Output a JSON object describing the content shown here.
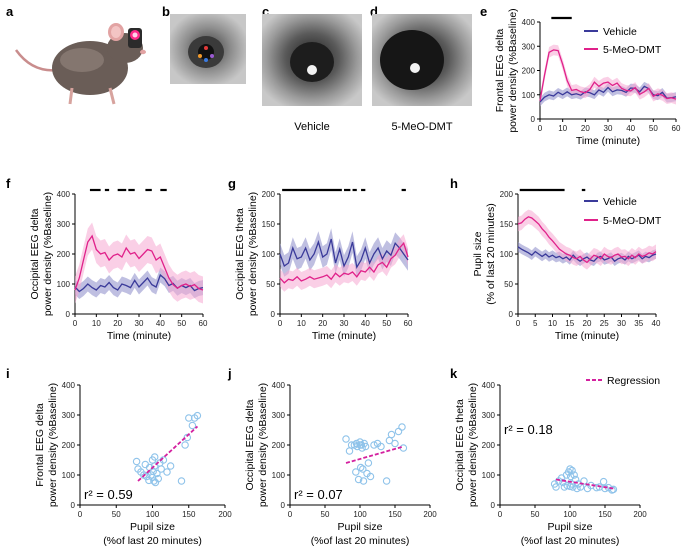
{
  "figure": {
    "panel_labels": [
      "a",
      "b",
      "c",
      "d",
      "e",
      "f",
      "g",
      "h",
      "i",
      "j",
      "k"
    ],
    "captions": {
      "c": "Vehicle",
      "d": "5-MeO-DMT"
    },
    "colors": {
      "vehicle": "#3a3a9a",
      "vehicle_band": "#8a8ac8",
      "drug": "#e0218a",
      "drug_band": "#f5a8d2",
      "scatter": "#8fc3ea",
      "regression": "#d4209f"
    }
  },
  "legend": {
    "vehicle": "Vehicle",
    "drug": "5-MeO-DMT",
    "regression": "Regression"
  },
  "chart_data": [
    {
      "panel": "e",
      "type": "line",
      "ylabel_main": "Frontal EEG delta",
      "ylabel_sub": "power density (%Baseline)",
      "xlabel_main": "Time",
      "xlabel_sub": "(minute)",
      "xlim": [
        0,
        60
      ],
      "ylim": [
        0,
        400
      ],
      "xticks": [
        0,
        10,
        20,
        30,
        40,
        50,
        60
      ],
      "yticks": [
        0,
        100,
        200,
        300,
        400
      ],
      "x": [
        0,
        2,
        4,
        6,
        8,
        10,
        12,
        14,
        16,
        18,
        20,
        22,
        24,
        26,
        28,
        30,
        32,
        34,
        36,
        38,
        40,
        42,
        44,
        46,
        48,
        50,
        52,
        54,
        56,
        58,
        60
      ],
      "series": [
        {
          "name": "Vehicle",
          "values": [
            70,
            90,
            100,
            95,
            110,
            100,
            112,
            100,
            104,
            98,
            112,
            108,
            100,
            120,
            110,
            130,
            112,
            120,
            118,
            110,
            128,
            126,
            112,
            135,
            125,
            100,
            96,
            110,
            86,
            88,
            92
          ],
          "band": 18
        },
        {
          "name": "5-MeO-DMT",
          "values": [
            75,
            180,
            275,
            285,
            282,
            225,
            158,
            118,
            122,
            112,
            108,
            122,
            152,
            135,
            148,
            152,
            138,
            148,
            126,
            118,
            116,
            130,
            102,
            112,
            126,
            94,
            104,
            98,
            84,
            88,
            82
          ],
          "band": 22
        }
      ],
      "sig_bars": [
        [
          5,
          14
        ]
      ]
    },
    {
      "panel": "f",
      "type": "line",
      "ylabel_main": "Occipital EEG delta",
      "ylabel_sub": "power density (%Baseline)",
      "xlabel_main": "Time",
      "xlabel_sub": "(minute)",
      "xlim": [
        0,
        60
      ],
      "ylim": [
        0,
        400
      ],
      "xticks": [
        0,
        10,
        20,
        30,
        40,
        50,
        60
      ],
      "yticks": [
        0,
        100,
        200,
        300,
        400
      ],
      "x": [
        0,
        2,
        4,
        6,
        8,
        10,
        12,
        14,
        16,
        18,
        20,
        22,
        24,
        26,
        28,
        30,
        32,
        34,
        36,
        38,
        40,
        42,
        44,
        46,
        48,
        50,
        52,
        54,
        56,
        58,
        60
      ],
      "series": [
        {
          "name": "Vehicle",
          "values": [
            90,
            75,
            85,
            100,
            88,
            80,
            95,
            90,
            105,
            88,
            80,
            100,
            95,
            88,
            112,
            90,
            105,
            120,
            98,
            90,
            130,
            118,
            95,
            102,
            86,
            95,
            88,
            95,
            78,
            85,
            88
          ],
          "band": 25
        },
        {
          "name": "5-MeO-DMT",
          "values": [
            80,
            120,
            180,
            240,
            260,
            215,
            200,
            205,
            180,
            195,
            200,
            190,
            220,
            200,
            205,
            185,
            200,
            215,
            210,
            180,
            190,
            155,
            120,
            98,
            86,
            95,
            100,
            92,
            98,
            85,
            80
          ],
          "band": 45
        }
      ],
      "sig_bars": [
        [
          7,
          12
        ],
        [
          14,
          16
        ],
        [
          20,
          24
        ],
        [
          25,
          28
        ],
        [
          33,
          36
        ],
        [
          40,
          43
        ]
      ]
    },
    {
      "panel": "g",
      "type": "line",
      "ylabel_main": "Occipital EEG theta",
      "ylabel_sub": "power density (%Baseline)",
      "xlabel_main": "Time",
      "xlabel_sub": "(minute)",
      "xlim": [
        0,
        60
      ],
      "ylim": [
        0,
        200
      ],
      "xticks": [
        0,
        10,
        20,
        30,
        40,
        50,
        60
      ],
      "yticks": [
        0,
        50,
        100,
        150,
        200
      ],
      "x": [
        0,
        2,
        4,
        6,
        8,
        10,
        12,
        14,
        16,
        18,
        20,
        22,
        24,
        26,
        28,
        30,
        32,
        34,
        36,
        38,
        40,
        42,
        44,
        46,
        48,
        50,
        52,
        54,
        56,
        58,
        60
      ],
      "series": [
        {
          "name": "Vehicle",
          "values": [
            100,
            80,
            85,
            110,
            92,
            95,
            110,
            90,
            100,
            120,
            95,
            100,
            125,
            85,
            108,
            80,
            95,
            120,
            78,
            90,
            110,
            85,
            100,
            110,
            92,
            105,
            98,
            118,
            110,
            100,
            90
          ],
          "band": 18
        },
        {
          "name": "5-MeO-DMT",
          "values": [
            60,
            52,
            58,
            56,
            62,
            55,
            58,
            62,
            58,
            60,
            62,
            65,
            58,
            68,
            62,
            68,
            66,
            70,
            62,
            72,
            70,
            78,
            70,
            82,
            86,
            78,
            92,
            98,
            110,
            118,
            95
          ],
          "band": 15
        }
      ],
      "sig_bars": [
        [
          1,
          29
        ],
        [
          30,
          33
        ],
        [
          34,
          36
        ],
        [
          38,
          40
        ],
        [
          57,
          59
        ]
      ]
    },
    {
      "panel": "h",
      "type": "line",
      "ylabel_main": "Pupil size",
      "ylabel_sub": "(% of last 20 minutes)",
      "xlabel_main": "Time",
      "xlabel_sub": "(minute)",
      "xlim": [
        0,
        40
      ],
      "ylim": [
        0,
        200
      ],
      "xticks": [
        0,
        5,
        10,
        15,
        20,
        25,
        30,
        35,
        40
      ],
      "yticks": [
        0,
        50,
        100,
        150,
        200
      ],
      "x": [
        0,
        1,
        2,
        3,
        4,
        5,
        6,
        7,
        8,
        9,
        10,
        11,
        12,
        13,
        14,
        15,
        16,
        17,
        18,
        19,
        20,
        21,
        22,
        23,
        24,
        25,
        26,
        27,
        28,
        29,
        30,
        31,
        32,
        33,
        34,
        35,
        36,
        37,
        38,
        39,
        40
      ],
      "series": [
        {
          "name": "Vehicle",
          "values": [
            112,
            108,
            105,
            102,
            98,
            104,
            100,
            96,
            100,
            95,
            98,
            94,
            96,
            92,
            95,
            90,
            98,
            92,
            88,
            92,
            95,
            90,
            88,
            94,
            96,
            90,
            92,
            95,
            88,
            92,
            94,
            90,
            96,
            92,
            95,
            98,
            92,
            96,
            94,
            98,
            100
          ],
          "band": 8
        },
        {
          "name": "5-MeO-DMT",
          "values": [
            150,
            152,
            158,
            162,
            160,
            155,
            150,
            142,
            136,
            128,
            122,
            115,
            108,
            104,
            100,
            98,
            94,
            92,
            96,
            90,
            86,
            92,
            98,
            96,
            92,
            100,
            96,
            94,
            98,
            100,
            95,
            96,
            92,
            98,
            94,
            100,
            96,
            98,
            102,
            100,
            104
          ],
          "band": 12
        }
      ],
      "sig_bars": [
        [
          0.5,
          13.5
        ],
        [
          18.5,
          19.5
        ]
      ]
    },
    {
      "panel": "i",
      "type": "scatter",
      "ylabel_main": "Frontal EEG delta",
      "ylabel_sub": "power density (%Baseline)",
      "xlabel_main": "Pupil size",
      "xlabel_sub": "(%of last 20 minutes)",
      "xlim": [
        0,
        200
      ],
      "ylim": [
        0,
        400
      ],
      "xticks": [
        0,
        50,
        100,
        150,
        200
      ],
      "yticks": [
        0,
        100,
        200,
        300,
        400
      ],
      "r2": "r² = 0.59",
      "points": [
        [
          78,
          145
        ],
        [
          80,
          120
        ],
        [
          84,
          110
        ],
        [
          88,
          100
        ],
        [
          90,
          135
        ],
        [
          92,
          95
        ],
        [
          95,
          82
        ],
        [
          96,
          125
        ],
        [
          98,
          100
        ],
        [
          100,
          150
        ],
        [
          100,
          92
        ],
        [
          101,
          112
        ],
        [
          102,
          80
        ],
        [
          103,
          130
        ],
        [
          104,
          75
        ],
        [
          106,
          105
        ],
        [
          108,
          88
        ],
        [
          110,
          140
        ],
        [
          112,
          120
        ],
        [
          115,
          150
        ],
        [
          120,
          110
        ],
        [
          125,
          130
        ],
        [
          140,
          80
        ],
        [
          145,
          200
        ],
        [
          148,
          225
        ],
        [
          150,
          290
        ],
        [
          155,
          265
        ],
        [
          158,
          290
        ],
        [
          162,
          298
        ],
        [
          103,
          160
        ]
      ],
      "regression": [
        [
          80,
          80
        ],
        [
          162,
          262
        ]
      ]
    },
    {
      "panel": "j",
      "type": "scatter",
      "ylabel_main": "Occipital EEG delta",
      "ylabel_sub": "power density (%Baseline)",
      "xlabel_main": "Pupil size",
      "xlabel_sub": "(%of last 20 minutes)",
      "xlim": [
        0,
        200
      ],
      "ylim": [
        0,
        400
      ],
      "xticks": [
        0,
        50,
        100,
        150,
        200
      ],
      "yticks": [
        0,
        100,
        200,
        300,
        400
      ],
      "r2": "r² = 0.07",
      "points": [
        [
          80,
          220
        ],
        [
          85,
          180
        ],
        [
          88,
          200
        ],
        [
          92,
          200
        ],
        [
          94,
          110
        ],
        [
          95,
          205
        ],
        [
          96,
          195
        ],
        [
          98,
          85
        ],
        [
          100,
          200
        ],
        [
          101,
          125
        ],
        [
          102,
          200
        ],
        [
          103,
          190
        ],
        [
          104,
          120
        ],
        [
          105,
          80
        ],
        [
          106,
          205
        ],
        [
          108,
          195
        ],
        [
          110,
          105
        ],
        [
          112,
          140
        ],
        [
          115,
          95
        ],
        [
          120,
          200
        ],
        [
          125,
          205
        ],
        [
          130,
          195
        ],
        [
          138,
          80
        ],
        [
          142,
          215
        ],
        [
          145,
          235
        ],
        [
          150,
          205
        ],
        [
          155,
          245
        ],
        [
          160,
          260
        ],
        [
          162,
          190
        ],
        [
          100,
          210
        ]
      ],
      "regression": [
        [
          80,
          140
        ],
        [
          162,
          195
        ]
      ]
    },
    {
      "panel": "k",
      "type": "scatter",
      "ylabel_main": "Occipital EEG theta",
      "ylabel_sub": "power density (%Baseline)",
      "xlabel_main": "Pupil size",
      "xlabel_sub": "(%of last 20 minutes)",
      "xlim": [
        0,
        200
      ],
      "ylim": [
        0,
        400
      ],
      "xticks": [
        0,
        50,
        100,
        150,
        200
      ],
      "yticks": [
        0,
        100,
        200,
        300,
        400
      ],
      "r2": "r² = 0.18",
      "points": [
        [
          78,
          70
        ],
        [
          80,
          60
        ],
        [
          84,
          80
        ],
        [
          88,
          90
        ],
        [
          90,
          75
        ],
        [
          92,
          60
        ],
        [
          95,
          100
        ],
        [
          96,
          65
        ],
        [
          98,
          110
        ],
        [
          100,
          120
        ],
        [
          101,
          95
        ],
        [
          102,
          70
        ],
        [
          103,
          115
        ],
        [
          104,
          60
        ],
        [
          106,
          100
        ],
        [
          108,
          85
        ],
        [
          110,
          55
        ],
        [
          112,
          70
        ],
        [
          115,
          60
        ],
        [
          120,
          80
        ],
        [
          125,
          55
        ],
        [
          130,
          65
        ],
        [
          138,
          58
        ],
        [
          142,
          60
        ],
        [
          148,
          78
        ],
        [
          150,
          55
        ],
        [
          155,
          58
        ],
        [
          160,
          50
        ],
        [
          162,
          52
        ],
        [
          100,
          62
        ]
      ],
      "regression": [
        [
          80,
          85
        ],
        [
          162,
          55
        ]
      ]
    }
  ]
}
